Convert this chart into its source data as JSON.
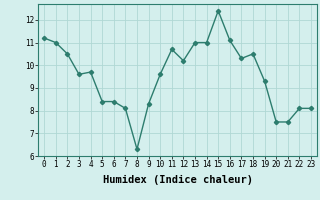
{
  "x": [
    0,
    1,
    2,
    3,
    4,
    5,
    6,
    7,
    8,
    9,
    10,
    11,
    12,
    13,
    14,
    15,
    16,
    17,
    18,
    19,
    20,
    21,
    22,
    23
  ],
  "y": [
    11.2,
    11.0,
    10.5,
    9.6,
    9.7,
    8.4,
    8.4,
    8.1,
    6.3,
    8.3,
    9.6,
    10.7,
    10.2,
    11.0,
    11.0,
    12.4,
    11.1,
    10.3,
    10.5,
    9.3,
    7.5,
    7.5,
    8.1,
    8.1
  ],
  "line_color": "#2d7d6e",
  "marker": "D",
  "marker_size": 2.2,
  "bg_color": "#d4efed",
  "grid_color": "#b0d8d4",
  "xlabel": "Humidex (Indice chaleur)",
  "xlim": [
    -0.5,
    23.5
  ],
  "ylim": [
    6,
    12.7
  ],
  "yticks": [
    6,
    7,
    8,
    9,
    10,
    11,
    12
  ],
  "xticks": [
    0,
    1,
    2,
    3,
    4,
    5,
    6,
    7,
    8,
    9,
    10,
    11,
    12,
    13,
    14,
    15,
    16,
    17,
    18,
    19,
    20,
    21,
    22,
    23
  ],
  "tick_fontsize": 5.5,
  "xlabel_fontsize": 7.5,
  "axis_color": "#2d7d6e",
  "linewidth": 1.0
}
